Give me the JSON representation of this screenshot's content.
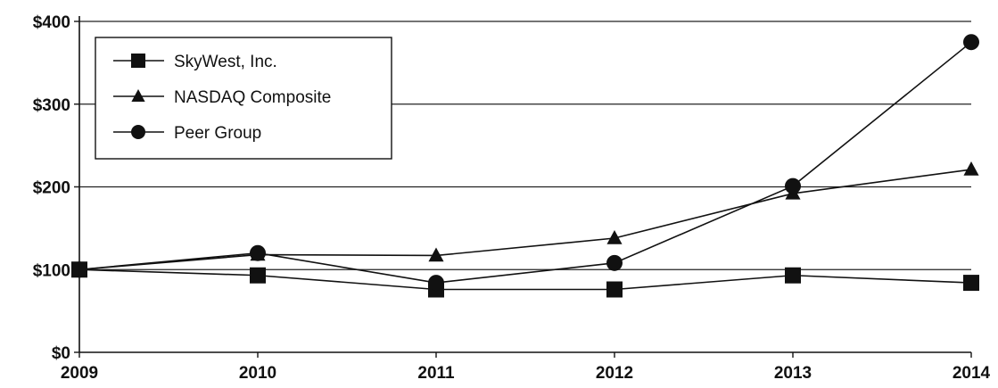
{
  "chart_data": {
    "type": "line",
    "x": [
      "2009",
      "2010",
      "2011",
      "2012",
      "2013",
      "2014"
    ],
    "yticks": [
      "$0",
      "$100",
      "$200",
      "$300",
      "$400"
    ],
    "ylim": [
      0,
      400
    ],
    "grid": true,
    "legend_position": "top-left",
    "series": [
      {
        "name": "SkyWest, Inc.",
        "marker": "square",
        "values": [
          100,
          93,
          76,
          76,
          93,
          84
        ]
      },
      {
        "name": "NASDAQ Composite",
        "marker": "triangle",
        "values": [
          100,
          118,
          117,
          138,
          192,
          221
        ]
      },
      {
        "name": "Peer Group",
        "marker": "circle",
        "values": [
          100,
          120,
          84,
          108,
          201,
          375
        ]
      }
    ]
  }
}
